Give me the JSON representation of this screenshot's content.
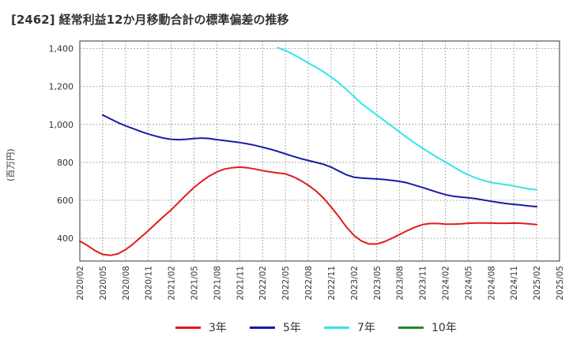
{
  "title": "[2462]  経常利益12か月移動合計の標準偏差の推移",
  "chart_data": {
    "type": "line",
    "title": "[2462]  経常利益12か月移動合計の標準偏差の推移",
    "xlabel": "",
    "ylabel": "(百万円)",
    "ylim": [
      280,
      1440
    ],
    "yticks": [
      400,
      600,
      800,
      1000,
      1200,
      1400
    ],
    "ytick_labels": [
      "400",
      "600",
      "800",
      "1,000",
      "1,200",
      "1,400"
    ],
    "x_ticks": [
      "2020/02",
      "2020/05",
      "2020/08",
      "2020/11",
      "2021/02",
      "2021/05",
      "2021/08",
      "2021/11",
      "2022/02",
      "2022/05",
      "2022/08",
      "2022/11",
      "2023/02",
      "2023/05",
      "2023/08",
      "2023/11",
      "2024/02",
      "2024/05",
      "2024/08",
      "2024/11",
      "2025/02",
      "2025/05"
    ],
    "grid": true,
    "legend_position": "bottom",
    "series": [
      {
        "name": "3年",
        "color": "#e41a1c",
        "data": [
          [
            "2020/02",
            385
          ],
          [
            "2020/03",
            362
          ],
          [
            "2020/04",
            335
          ],
          [
            "2020/05",
            315
          ],
          [
            "2020/06",
            310
          ],
          [
            "2020/07",
            318
          ],
          [
            "2020/08",
            340
          ],
          [
            "2020/09",
            370
          ],
          [
            "2020/10",
            405
          ],
          [
            "2020/11",
            440
          ],
          [
            "2020/12",
            478
          ],
          [
            "2021/01",
            515
          ],
          [
            "2021/02",
            550
          ],
          [
            "2021/03",
            590
          ],
          [
            "2021/04",
            630
          ],
          [
            "2021/05",
            668
          ],
          [
            "2021/06",
            700
          ],
          [
            "2021/07",
            728
          ],
          [
            "2021/08",
            750
          ],
          [
            "2021/09",
            765
          ],
          [
            "2021/10",
            772
          ],
          [
            "2021/11",
            775
          ],
          [
            "2021/12",
            772
          ],
          [
            "2022/01",
            765
          ],
          [
            "2022/02",
            757
          ],
          [
            "2022/03",
            750
          ],
          [
            "2022/04",
            745
          ],
          [
            "2022/05",
            740
          ],
          [
            "2022/06",
            725
          ],
          [
            "2022/07",
            705
          ],
          [
            "2022/08",
            680
          ],
          [
            "2022/09",
            650
          ],
          [
            "2022/10",
            612
          ],
          [
            "2022/11",
            565
          ],
          [
            "2022/12",
            515
          ],
          [
            "2023/01",
            460
          ],
          [
            "2023/02",
            415
          ],
          [
            "2023/03",
            385
          ],
          [
            "2023/04",
            370
          ],
          [
            "2023/05",
            370
          ],
          [
            "2023/06",
            382
          ],
          [
            "2023/07",
            400
          ],
          [
            "2023/08",
            420
          ],
          [
            "2023/09",
            440
          ],
          [
            "2023/10",
            458
          ],
          [
            "2023/11",
            472
          ],
          [
            "2023/12",
            478
          ],
          [
            "2024/01",
            478
          ],
          [
            "2024/02",
            475
          ],
          [
            "2024/03",
            474
          ],
          [
            "2024/04",
            476
          ],
          [
            "2024/05",
            479
          ],
          [
            "2024/06",
            481
          ],
          [
            "2024/07",
            481
          ],
          [
            "2024/08",
            480
          ],
          [
            "2024/09",
            479
          ],
          [
            "2024/10",
            479
          ],
          [
            "2024/11",
            480
          ],
          [
            "2024/12",
            479
          ],
          [
            "2025/01",
            476
          ],
          [
            "2025/02",
            472
          ]
        ]
      },
      {
        "name": "5年",
        "color": "#1a1aa8",
        "data": [
          [
            "2020/05",
            1050
          ],
          [
            "2020/06",
            1030
          ],
          [
            "2020/07",
            1010
          ],
          [
            "2020/08",
            993
          ],
          [
            "2020/09",
            978
          ],
          [
            "2020/10",
            963
          ],
          [
            "2020/11",
            950
          ],
          [
            "2020/12",
            938
          ],
          [
            "2021/01",
            928
          ],
          [
            "2021/02",
            922
          ],
          [
            "2021/03",
            920
          ],
          [
            "2021/04",
            922
          ],
          [
            "2021/05",
            926
          ],
          [
            "2021/06",
            928
          ],
          [
            "2021/07",
            926
          ],
          [
            "2021/08",
            920
          ],
          [
            "2021/09",
            915
          ],
          [
            "2021/10",
            910
          ],
          [
            "2021/11",
            905
          ],
          [
            "2021/12",
            898
          ],
          [
            "2022/01",
            890
          ],
          [
            "2022/02",
            880
          ],
          [
            "2022/03",
            870
          ],
          [
            "2022/04",
            858
          ],
          [
            "2022/05",
            845
          ],
          [
            "2022/06",
            832
          ],
          [
            "2022/07",
            820
          ],
          [
            "2022/08",
            810
          ],
          [
            "2022/09",
            800
          ],
          [
            "2022/10",
            790
          ],
          [
            "2022/11",
            775
          ],
          [
            "2022/12",
            755
          ],
          [
            "2023/01",
            735
          ],
          [
            "2023/02",
            722
          ],
          [
            "2023/03",
            718
          ],
          [
            "2023/04",
            715
          ],
          [
            "2023/05",
            713
          ],
          [
            "2023/06",
            710
          ],
          [
            "2023/07",
            705
          ],
          [
            "2023/08",
            700
          ],
          [
            "2023/09",
            692
          ],
          [
            "2023/10",
            680
          ],
          [
            "2023/11",
            668
          ],
          [
            "2023/12",
            655
          ],
          [
            "2024/01",
            642
          ],
          [
            "2024/02",
            630
          ],
          [
            "2024/03",
            622
          ],
          [
            "2024/04",
            617
          ],
          [
            "2024/05",
            614
          ],
          [
            "2024/06",
            609
          ],
          [
            "2024/07",
            602
          ],
          [
            "2024/08",
            595
          ],
          [
            "2024/09",
            589
          ],
          [
            "2024/10",
            583
          ],
          [
            "2024/11",
            579
          ],
          [
            "2024/12",
            575
          ],
          [
            "2025/01",
            570
          ],
          [
            "2025/02",
            567
          ]
        ]
      },
      {
        "name": "7年",
        "color": "#33e6e6",
        "data": [
          [
            "2022/04",
            1405
          ],
          [
            "2022/05",
            1390
          ],
          [
            "2022/06",
            1370
          ],
          [
            "2022/07",
            1348
          ],
          [
            "2022/08",
            1325
          ],
          [
            "2022/09",
            1302
          ],
          [
            "2022/10",
            1278
          ],
          [
            "2022/11",
            1250
          ],
          [
            "2022/12",
            1220
          ],
          [
            "2023/01",
            1185
          ],
          [
            "2023/02",
            1148
          ],
          [
            "2023/03",
            1110
          ],
          [
            "2023/04",
            1080
          ],
          [
            "2023/05",
            1050
          ],
          [
            "2023/06",
            1020
          ],
          [
            "2023/07",
            990
          ],
          [
            "2023/08",
            960
          ],
          [
            "2023/09",
            930
          ],
          [
            "2023/10",
            902
          ],
          [
            "2023/11",
            875
          ],
          [
            "2023/12",
            850
          ],
          [
            "2024/01",
            825
          ],
          [
            "2024/02",
            802
          ],
          [
            "2024/03",
            778
          ],
          [
            "2024/04",
            755
          ],
          [
            "2024/05",
            735
          ],
          [
            "2024/06",
            718
          ],
          [
            "2024/07",
            705
          ],
          [
            "2024/08",
            695
          ],
          [
            "2024/09",
            688
          ],
          [
            "2024/10",
            682
          ],
          [
            "2024/11",
            676
          ],
          [
            "2024/12",
            668
          ],
          [
            "2025/01",
            660
          ],
          [
            "2025/02",
            656
          ]
        ]
      },
      {
        "name": "10年",
        "color": "#228b22",
        "data": []
      }
    ]
  }
}
